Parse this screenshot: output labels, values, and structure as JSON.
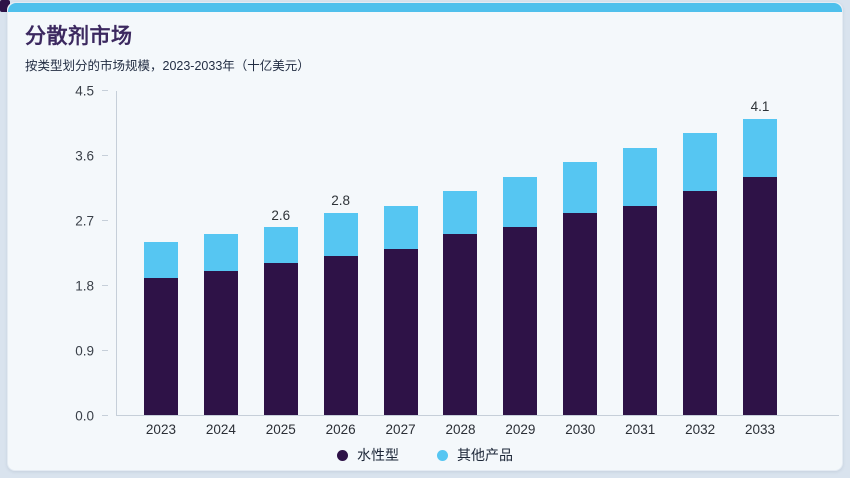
{
  "page": {
    "accent_bar_color": "#4fc0ec",
    "corner_mark_color": "#2e1247",
    "card_background": "#f4f8fb",
    "page_background": "#d9e3ee"
  },
  "chart_data": {
    "type": "bar",
    "stacked": true,
    "title": "分散剂市场",
    "subtitle": "按类型划分的市场规模，2023-2033年（十亿美元）",
    "title_color": "#3c2960",
    "categories": [
      "2023",
      "2024",
      "2025",
      "2026",
      "2027",
      "2028",
      "2029",
      "2030",
      "2031",
      "2032",
      "2033"
    ],
    "series": [
      {
        "name": "水性型",
        "color": "#2e1247",
        "values": [
          1.9,
          2.0,
          2.1,
          2.2,
          2.3,
          2.5,
          2.6,
          2.8,
          2.9,
          3.1,
          3.3
        ]
      },
      {
        "name": "其他产品",
        "color": "#56c6f2",
        "values": [
          0.5,
          0.5,
          0.5,
          0.6,
          0.6,
          0.6,
          0.7,
          0.7,
          0.8,
          0.8,
          0.8
        ]
      }
    ],
    "totals": [
      2.4,
      2.5,
      2.6,
      2.8,
      2.9,
      3.1,
      3.3,
      3.5,
      3.7,
      3.9,
      4.1
    ],
    "total_labels": {
      "2025": "2.6",
      "2026": "2.8",
      "2033": "4.1"
    },
    "y_ticks": [
      "4.5",
      "3.6",
      "2.7",
      "1.8",
      "0.9",
      "0.0"
    ],
    "ylim": [
      0,
      4.5
    ],
    "xlabel": "",
    "ylabel": "",
    "grid": false,
    "legend_position": "bottom"
  }
}
